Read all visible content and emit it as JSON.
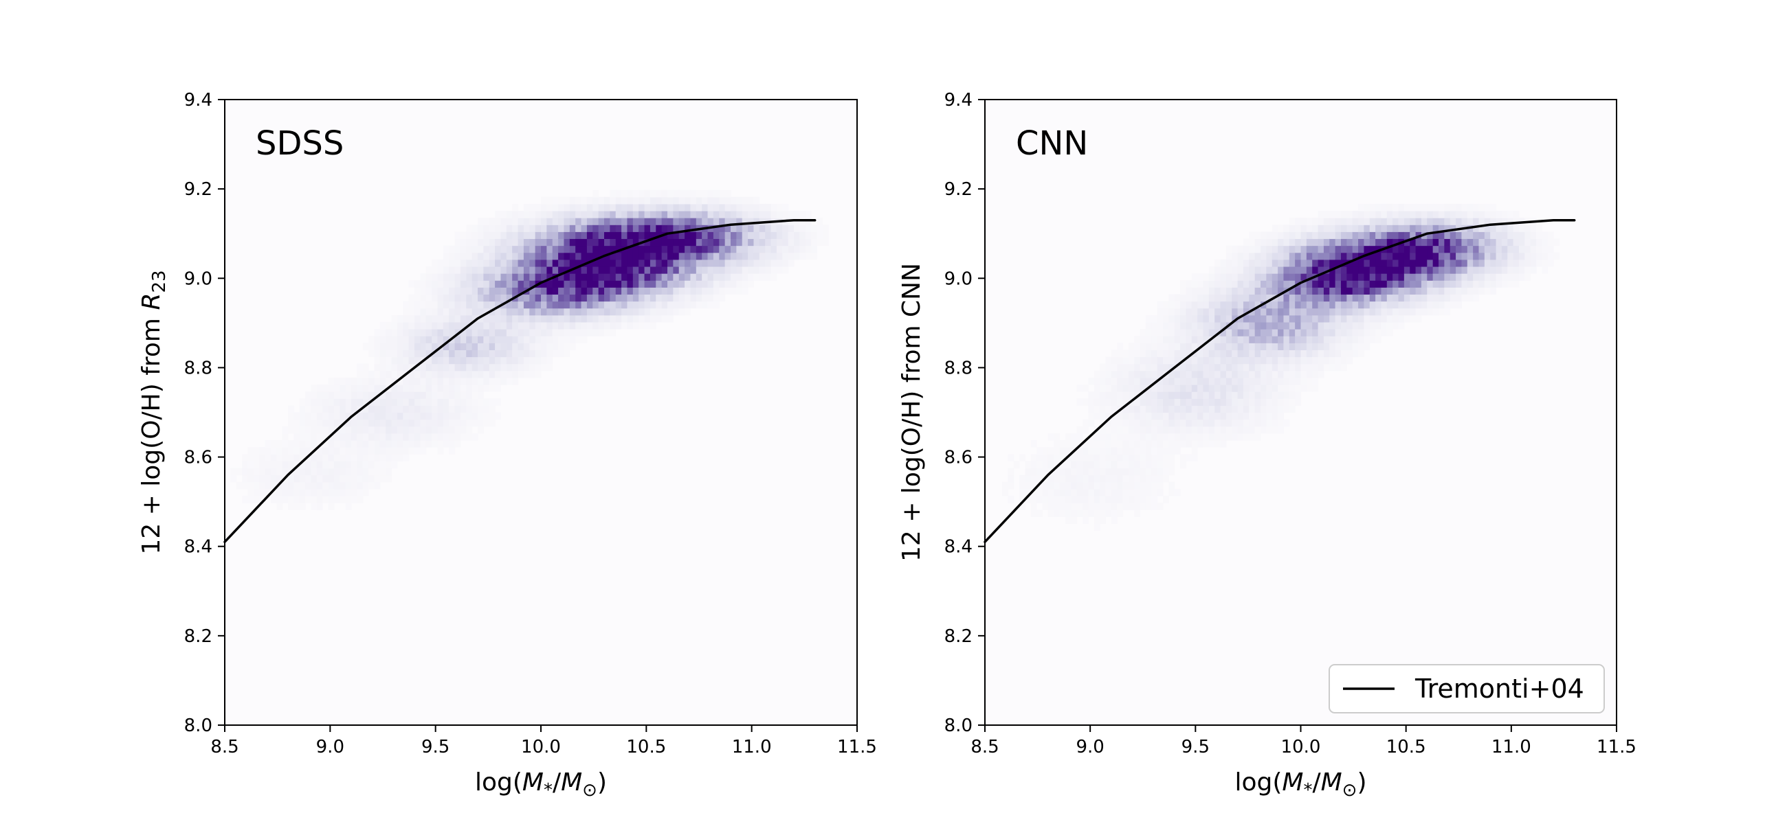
{
  "chart_data": [
    {
      "type": "heatmap",
      "panel_label": "SDSS",
      "xlabel": "log(M*/M⊙)",
      "ylabel": "12 + log(O/H) from R23",
      "xlim": [
        8.5,
        11.5
      ],
      "ylim": [
        8.0,
        9.4
      ],
      "xticks": [
        "8.5",
        "9.0",
        "9.5",
        "10.0",
        "10.5",
        "11.0",
        "11.5"
      ],
      "yticks": [
        "8.0",
        "8.2",
        "8.4",
        "8.6",
        "8.8",
        "9.0",
        "9.2",
        "9.4"
      ],
      "colormap": "Purples",
      "density_ridge": [
        {
          "x": 8.9,
          "y": 8.56,
          "sx": 0.25,
          "sy": 0.05,
          "w": 0.06
        },
        {
          "x": 9.3,
          "y": 8.7,
          "sx": 0.25,
          "sy": 0.05,
          "w": 0.12
        },
        {
          "x": 9.65,
          "y": 8.85,
          "sx": 0.2,
          "sy": 0.04,
          "w": 0.3
        },
        {
          "x": 10.05,
          "y": 8.97,
          "sx": 0.25,
          "sy": 0.04,
          "w": 0.6
        },
        {
          "x": 10.3,
          "y": 9.02,
          "sx": 0.25,
          "sy": 0.04,
          "w": 0.9
        },
        {
          "x": 10.45,
          "y": 9.08,
          "sx": 0.3,
          "sy": 0.04,
          "w": 0.85
        },
        {
          "x": 10.7,
          "y": 9.1,
          "sx": 0.25,
          "sy": 0.035,
          "w": 0.4
        }
      ],
      "series": [
        {
          "name": "Tremonti+04",
          "x": [
            8.5,
            8.8,
            9.1,
            9.4,
            9.7,
            10.0,
            10.3,
            10.6,
            10.9,
            11.2,
            11.3
          ],
          "y": [
            8.41,
            8.56,
            8.69,
            8.8,
            8.91,
            8.99,
            9.05,
            9.1,
            9.12,
            9.13,
            9.13
          ]
        }
      ]
    },
    {
      "type": "heatmap",
      "panel_label": "CNN",
      "xlabel": "log(M*/M⊙)",
      "ylabel": "12 + log(O/H) from CNN",
      "xlim": [
        8.5,
        11.5
      ],
      "ylim": [
        8.0,
        9.4
      ],
      "xticks": [
        "8.5",
        "9.0",
        "9.5",
        "10.0",
        "10.5",
        "11.0",
        "11.5"
      ],
      "yticks": [
        "8.0",
        "8.2",
        "8.4",
        "8.6",
        "8.8",
        "9.0",
        "9.2",
        "9.4"
      ],
      "colormap": "Purples",
      "legend": {
        "position": "lower right",
        "entries": [
          "Tremonti+04"
        ]
      },
      "density_ridge": [
        {
          "x": 9.0,
          "y": 8.55,
          "sx": 0.3,
          "sy": 0.07,
          "w": 0.05
        },
        {
          "x": 9.5,
          "y": 8.75,
          "sx": 0.25,
          "sy": 0.06,
          "w": 0.18
        },
        {
          "x": 9.85,
          "y": 8.9,
          "sx": 0.22,
          "sy": 0.05,
          "w": 0.45
        },
        {
          "x": 10.2,
          "y": 9.0,
          "sx": 0.22,
          "sy": 0.04,
          "w": 0.9
        },
        {
          "x": 10.45,
          "y": 9.05,
          "sx": 0.25,
          "sy": 0.04,
          "w": 0.9
        },
        {
          "x": 10.7,
          "y": 9.08,
          "sx": 0.2,
          "sy": 0.035,
          "w": 0.35
        }
      ],
      "series": [
        {
          "name": "Tremonti+04",
          "x": [
            8.5,
            8.8,
            9.1,
            9.4,
            9.7,
            10.0,
            10.3,
            10.6,
            10.9,
            11.2,
            11.3
          ],
          "y": [
            8.41,
            8.56,
            8.69,
            8.8,
            8.91,
            8.99,
            9.05,
            9.1,
            9.12,
            9.13,
            9.13
          ]
        }
      ]
    }
  ]
}
